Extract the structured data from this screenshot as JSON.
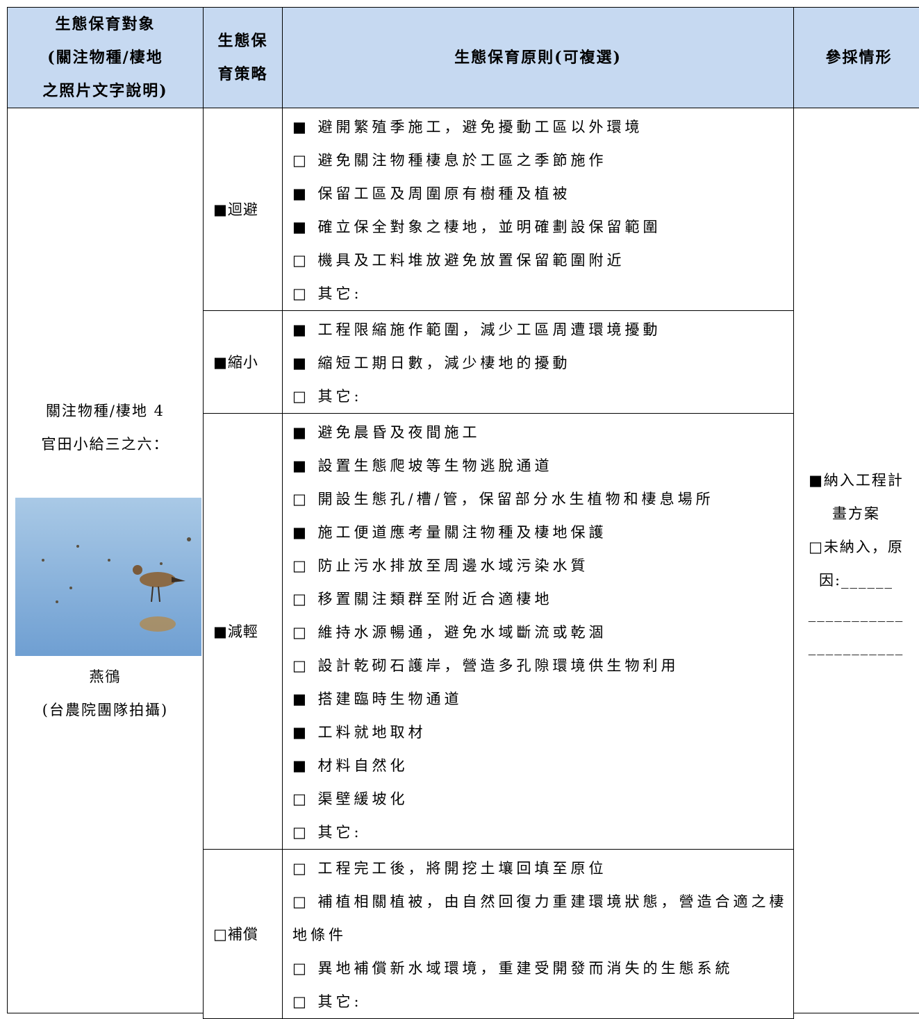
{
  "header": {
    "columns": [
      [
        "生態保育對象",
        "(關注物種/棲地",
        "之照片文字說明)"
      ],
      [
        "生態保",
        "育策略"
      ],
      [
        "生態保育原則(可複選)"
      ],
      [
        "參採情形"
      ]
    ]
  },
  "target": {
    "lines": [
      "關注物種/棲地 4",
      "官田小給三之六："
    ],
    "caption": [
      "燕鴴",
      "(台農院團隊拍攝)"
    ]
  },
  "strategies": [
    {
      "label": "■迴避",
      "items": [
        "■ 避開繁殖季施工，避免擾動工區以外環境",
        "□ 避免關注物種棲息於工區之季節施作",
        "■ 保留工區及周圍原有樹種及植被",
        "■ 確立保全對象之棲地，並明確劃設保留範圍",
        "□ 機具及工料堆放避免放置保留範圍附近",
        "□ 其它:"
      ]
    },
    {
      "label": "■縮小",
      "items": [
        "■ 工程限縮施作範圍，減少工區周遭環境擾動",
        "■ 縮短工期日數，減少棲地的擾動",
        "□ 其它:"
      ]
    },
    {
      "label": "■減輕",
      "items": [
        "■ 避免晨昏及夜間施工",
        "■ 設置生態爬坡等生物逃脫通道",
        "□ 開設生態孔/槽/管，保留部分水生植物和棲息場所",
        "■ 施工便道應考量關注物種及棲地保護",
        "□ 防止污水排放至周邊水域污染水質",
        "□ 移置關注類群至附近合適棲地",
        "□ 維持水源暢通，避免水域斷流或乾涸",
        "□ 設計乾砌石護岸，營造多孔隙環境供生物利用",
        "■ 搭建臨時生物通道",
        "■ 工料就地取材",
        "■ 材料自然化",
        "□ 渠壁緩坡化",
        "□ 其它:"
      ]
    },
    {
      "label": "□補償",
      "items": [
        "□ 工程完工後，將開挖土壤回填至原位",
        "□ 補植相關植被，由自然回復力重建環境狀態，營造合適之棲地條件",
        "□ 異地補償新水域環境，重建受開發而消失的生態系統",
        "□ 其它:"
      ]
    }
  ],
  "adoption": {
    "lines": [
      "■納入工程計",
      "畫方案",
      "□未納入，原",
      "因:______",
      "___________",
      "___________"
    ]
  }
}
